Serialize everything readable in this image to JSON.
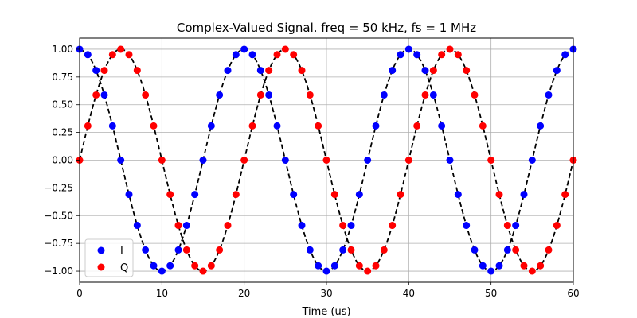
{
  "chart_data": {
    "type": "scatter",
    "title": "Complex-Valued Signal. freq = 50 kHz, fs = 1 MHz",
    "xlabel": "Time (us)",
    "ylabel": "",
    "xlim": [
      0,
      60
    ],
    "ylim": [
      -1.1,
      1.1
    ],
    "x_ticks": [
      "0",
      "10",
      "20",
      "30",
      "40",
      "50",
      "60"
    ],
    "y_ticks": [
      "−1.00",
      "−0.75",
      "−0.50",
      "−0.25",
      "0.00",
      "0.25",
      "0.50",
      "0.75",
      "1.00"
    ],
    "grid": true,
    "legend_position": "lower-left",
    "x": [
      0,
      1,
      2,
      3,
      4,
      5,
      6,
      7,
      8,
      9,
      10,
      11,
      12,
      13,
      14,
      15,
      16,
      17,
      18,
      19,
      20,
      21,
      22,
      23,
      24,
      25,
      26,
      27,
      28,
      29,
      30,
      31,
      32,
      33,
      34,
      35,
      36,
      37,
      38,
      39,
      40,
      41,
      42,
      43,
      44,
      45,
      46,
      47,
      48,
      49,
      50,
      51,
      52,
      53,
      54,
      55,
      56,
      57,
      58,
      59,
      60
    ],
    "series": [
      {
        "name": "I",
        "color": "#0000ff",
        "values": [
          1.0,
          0.951,
          0.809,
          0.588,
          0.309,
          0.0,
          -0.309,
          -0.588,
          -0.809,
          -0.951,
          -1.0,
          -0.951,
          -0.809,
          -0.588,
          -0.309,
          0.0,
          0.309,
          0.588,
          0.809,
          0.951,
          1.0,
          0.951,
          0.809,
          0.588,
          0.309,
          0.0,
          -0.309,
          -0.588,
          -0.809,
          -0.951,
          -1.0,
          -0.951,
          -0.809,
          -0.588,
          -0.309,
          0.0,
          0.309,
          0.588,
          0.809,
          0.951,
          1.0,
          0.951,
          0.809,
          0.588,
          0.309,
          0.0,
          -0.309,
          -0.588,
          -0.809,
          -0.951,
          -1.0,
          -0.951,
          -0.809,
          -0.588,
          -0.309,
          0.0,
          0.309,
          0.588,
          0.809,
          0.951,
          1.0
        ]
      },
      {
        "name": "Q",
        "color": "#ff0000",
        "values": [
          0.0,
          0.309,
          0.588,
          0.809,
          0.951,
          1.0,
          0.951,
          0.809,
          0.588,
          0.309,
          0.0,
          -0.309,
          -0.588,
          -0.809,
          -0.951,
          -1.0,
          -0.951,
          -0.809,
          -0.588,
          -0.309,
          0.0,
          0.309,
          0.588,
          0.809,
          0.951,
          1.0,
          0.951,
          0.809,
          0.588,
          0.309,
          0.0,
          -0.309,
          -0.588,
          -0.809,
          -0.951,
          -1.0,
          -0.951,
          -0.809,
          -0.588,
          -0.309,
          0.0,
          0.309,
          0.588,
          0.809,
          0.951,
          1.0,
          0.951,
          0.809,
          0.588,
          0.309,
          0.0,
          -0.309,
          -0.588,
          -0.809,
          -0.951,
          -1.0,
          -0.951,
          -0.809,
          -0.588,
          -0.309,
          0.0
        ]
      }
    ],
    "line_color": "#000000"
  }
}
